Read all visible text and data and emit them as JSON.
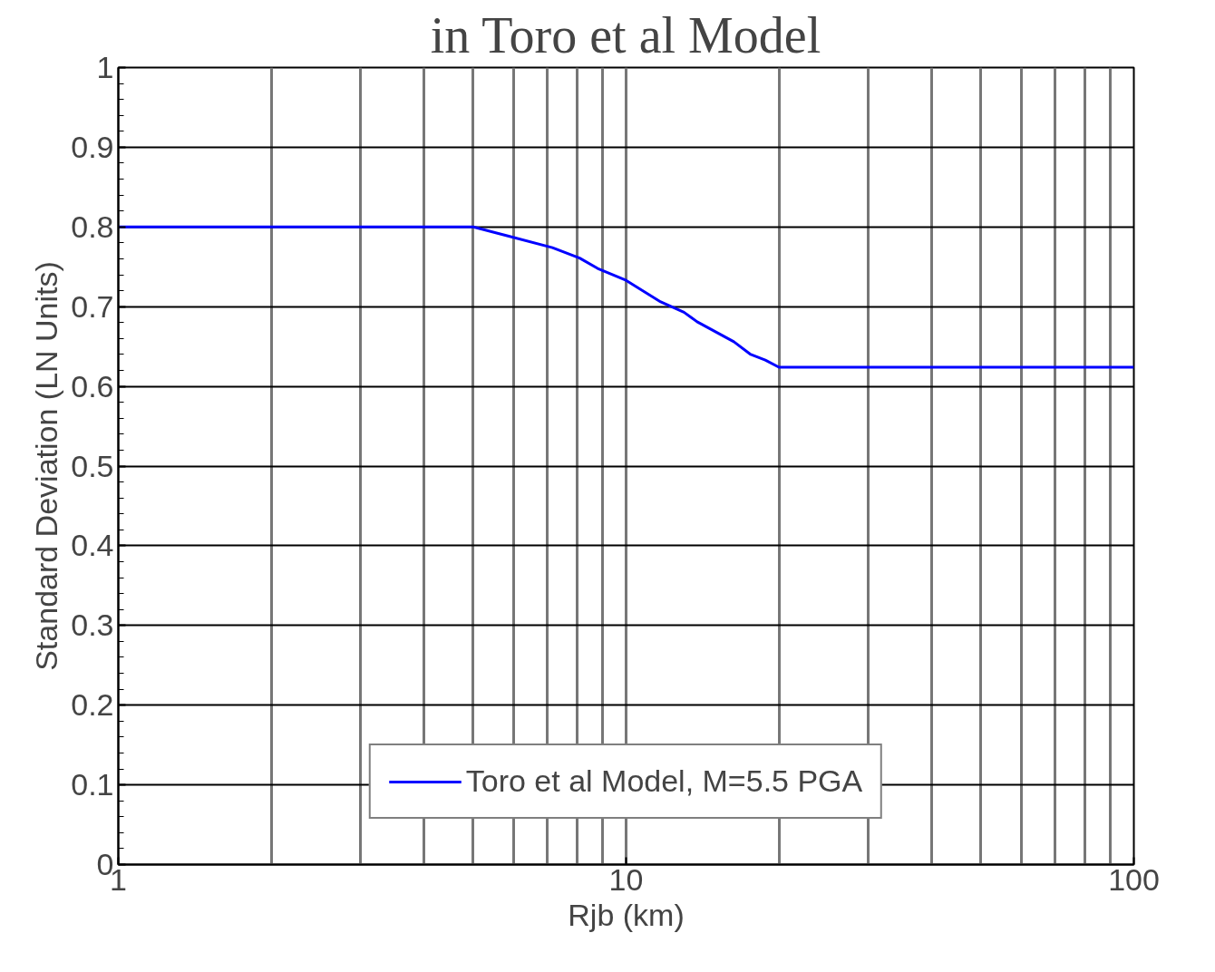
{
  "chart_data": {
    "type": "line",
    "title": "in Toro et al Model",
    "xlabel": "Rjb (km)",
    "ylabel": "Standard Deviation (LN Units)",
    "series": [
      {
        "name": "Toro et al Model, M=5.5 PGA",
        "color": "#0000ff",
        "x": [
          1,
          5,
          5.83,
          7.16,
          8.1,
          8.79,
          10,
          11.7,
          13,
          13.8,
          16.3,
          17.6,
          18.8,
          20,
          100
        ],
        "values": [
          0.8,
          0.8,
          0.789,
          0.774,
          0.761,
          0.748,
          0.733,
          0.706,
          0.693,
          0.681,
          0.656,
          0.64,
          0.633,
          0.624,
          0.624
        ]
      }
    ],
    "log": "x",
    "xlim": [
      1,
      100
    ],
    "ylim": [
      0,
      1
    ],
    "xticks": [
      1,
      {
        "value": 2,
        "label": null
      },
      {
        "value": 3,
        "label": null
      },
      {
        "value": 4,
        "label": null
      },
      {
        "value": 5,
        "label": null
      },
      {
        "value": 6,
        "label": null
      },
      {
        "value": 7,
        "label": null
      },
      {
        "value": 8,
        "label": null
      },
      {
        "value": 9,
        "label": null
      },
      10,
      {
        "value": 20,
        "label": null
      },
      {
        "value": 30,
        "label": null
      },
      {
        "value": 40,
        "label": null
      },
      {
        "value": 50,
        "label": null
      },
      {
        "value": 60,
        "label": null
      },
      {
        "value": 70,
        "label": null
      },
      {
        "value": 80,
        "label": null
      },
      {
        "value": 90,
        "label": null
      },
      100
    ],
    "yticks": [
      0,
      0.1,
      0.2,
      0.3,
      0.4,
      0.5,
      0.6,
      0.7,
      0.8,
      0.9,
      1
    ],
    "grid": true,
    "legend": "bottom",
    "line_style": "solid",
    "marker": "none"
  }
}
